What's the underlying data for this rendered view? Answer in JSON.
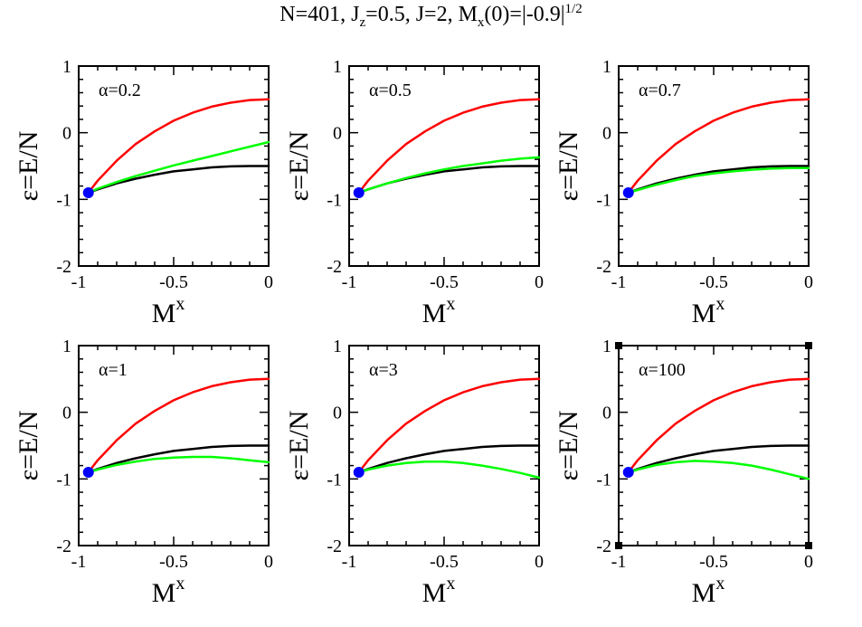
{
  "title": {
    "parts": [
      {
        "text": "N=401, J",
        "style": "normal"
      },
      {
        "text": "z",
        "style": "sub"
      },
      {
        "text": "=0.5, J=2,  M",
        "style": "normal"
      },
      {
        "text": "x",
        "style": "sub"
      },
      {
        "text": "(0)=|-0.9|",
        "style": "normal"
      },
      {
        "text": "1/2",
        "style": "sup"
      }
    ]
  },
  "colors": {
    "red": "#ff0000",
    "black": "#000000",
    "green": "#00ff00",
    "marker": "#0000ff",
    "orange": "#ffa500"
  },
  "chart_data": [
    {
      "type": "line",
      "label": "α=0.2",
      "xlabel": {
        "base": "M",
        "sup": "x"
      },
      "ylabel": "ε=E/N",
      "xlim": [
        -1,
        0
      ],
      "ylim": [
        -2,
        1
      ],
      "xticks": [
        "-1",
        "-0.5",
        "0"
      ],
      "yticks": [
        "-2",
        "-1",
        "0",
        "1"
      ],
      "series": [
        {
          "color": "red",
          "x": [
            -0.949,
            -0.9,
            -0.8,
            -0.7,
            -0.6,
            -0.5,
            -0.4,
            -0.3,
            -0.2,
            -0.1,
            0
          ],
          "y": [
            -0.9,
            -0.72,
            -0.42,
            -0.17,
            0.02,
            0.18,
            0.3,
            0.39,
            0.45,
            0.49,
            0.5
          ]
        },
        {
          "color": "black",
          "x": [
            -0.949,
            -0.9,
            -0.8,
            -0.7,
            -0.6,
            -0.5,
            -0.4,
            -0.3,
            -0.2,
            -0.1,
            0
          ],
          "y": [
            -0.9,
            -0.85,
            -0.76,
            -0.69,
            -0.63,
            -0.58,
            -0.55,
            -0.52,
            -0.505,
            -0.5,
            -0.5
          ]
        },
        {
          "color": "green",
          "x": [
            -0.949,
            -0.9,
            -0.8,
            -0.7,
            -0.6,
            -0.5,
            -0.4,
            -0.3,
            -0.2,
            -0.1,
            0
          ],
          "y": [
            -0.9,
            -0.84,
            -0.74,
            -0.65,
            -0.57,
            -0.49,
            -0.42,
            -0.35,
            -0.28,
            -0.21,
            -0.14
          ]
        }
      ],
      "point": {
        "x": -0.949,
        "y": -0.9
      }
    },
    {
      "type": "line",
      "label": "α=0.5",
      "xlabel": {
        "base": "M",
        "sup": "x"
      },
      "ylabel": "ε=E/N",
      "xlim": [
        -1,
        0
      ],
      "ylim": [
        -2,
        1
      ],
      "xticks": [
        "-1",
        "-0.5",
        "0"
      ],
      "yticks": [
        "-2",
        "-1",
        "0",
        "1"
      ],
      "series": [
        {
          "color": "red",
          "x": [
            -0.949,
            -0.9,
            -0.8,
            -0.7,
            -0.6,
            -0.5,
            -0.4,
            -0.3,
            -0.2,
            -0.1,
            0
          ],
          "y": [
            -0.9,
            -0.72,
            -0.42,
            -0.17,
            0.02,
            0.18,
            0.3,
            0.39,
            0.45,
            0.49,
            0.5
          ]
        },
        {
          "color": "black",
          "x": [
            -0.949,
            -0.9,
            -0.8,
            -0.7,
            -0.6,
            -0.5,
            -0.4,
            -0.3,
            -0.2,
            -0.1,
            0
          ],
          "y": [
            -0.9,
            -0.85,
            -0.76,
            -0.69,
            -0.63,
            -0.58,
            -0.55,
            -0.52,
            -0.505,
            -0.5,
            -0.5
          ]
        },
        {
          "color": "green",
          "x": [
            -0.949,
            -0.9,
            -0.8,
            -0.7,
            -0.6,
            -0.5,
            -0.4,
            -0.3,
            -0.2,
            -0.1,
            0
          ],
          "y": [
            -0.9,
            -0.85,
            -0.76,
            -0.68,
            -0.61,
            -0.55,
            -0.5,
            -0.46,
            -0.42,
            -0.39,
            -0.37
          ]
        }
      ],
      "point": {
        "x": -0.949,
        "y": -0.9
      }
    },
    {
      "type": "line",
      "label": "α=0.7",
      "xlabel": {
        "base": "M",
        "sup": "x"
      },
      "ylabel": "ε=E/N",
      "xlim": [
        -1,
        0
      ],
      "ylim": [
        -2,
        1
      ],
      "xticks": [
        "-1",
        "-0.5",
        "0"
      ],
      "yticks": [
        "-2",
        "-1",
        "0",
        "1"
      ],
      "series": [
        {
          "color": "red",
          "x": [
            -0.949,
            -0.9,
            -0.8,
            -0.7,
            -0.6,
            -0.5,
            -0.4,
            -0.3,
            -0.2,
            -0.1,
            0
          ],
          "y": [
            -0.9,
            -0.72,
            -0.42,
            -0.17,
            0.02,
            0.18,
            0.3,
            0.39,
            0.45,
            0.49,
            0.5
          ]
        },
        {
          "color": "black",
          "x": [
            -0.949,
            -0.9,
            -0.8,
            -0.7,
            -0.6,
            -0.5,
            -0.4,
            -0.3,
            -0.2,
            -0.1,
            0
          ],
          "y": [
            -0.9,
            -0.85,
            -0.76,
            -0.69,
            -0.63,
            -0.58,
            -0.55,
            -0.52,
            -0.505,
            -0.5,
            -0.5
          ]
        },
        {
          "color": "green",
          "x": [
            -0.949,
            -0.9,
            -0.8,
            -0.7,
            -0.6,
            -0.5,
            -0.4,
            -0.3,
            -0.2,
            -0.1,
            0
          ],
          "y": [
            -0.9,
            -0.86,
            -0.78,
            -0.71,
            -0.65,
            -0.61,
            -0.58,
            -0.555,
            -0.54,
            -0.53,
            -0.53
          ]
        }
      ],
      "point": {
        "x": -0.949,
        "y": -0.9
      }
    },
    {
      "type": "line",
      "label": "α=1",
      "xlabel": {
        "base": "M",
        "sup": "x"
      },
      "ylabel": "ε=E/N",
      "xlim": [
        -1,
        0
      ],
      "ylim": [
        -2,
        1
      ],
      "xticks": [
        "-1",
        "-0.5",
        "0"
      ],
      "yticks": [
        "-2",
        "-1",
        "0",
        "1"
      ],
      "series": [
        {
          "color": "red",
          "x": [
            -0.949,
            -0.9,
            -0.8,
            -0.7,
            -0.6,
            -0.5,
            -0.4,
            -0.3,
            -0.2,
            -0.1,
            0
          ],
          "y": [
            -0.9,
            -0.72,
            -0.42,
            -0.17,
            0.02,
            0.18,
            0.3,
            0.39,
            0.45,
            0.49,
            0.5
          ]
        },
        {
          "color": "black",
          "x": [
            -0.949,
            -0.9,
            -0.8,
            -0.7,
            -0.6,
            -0.5,
            -0.4,
            -0.3,
            -0.2,
            -0.1,
            0
          ],
          "y": [
            -0.9,
            -0.85,
            -0.76,
            -0.69,
            -0.63,
            -0.58,
            -0.55,
            -0.52,
            -0.505,
            -0.5,
            -0.5
          ]
        },
        {
          "color": "green",
          "x": [
            -0.949,
            -0.9,
            -0.8,
            -0.7,
            -0.6,
            -0.5,
            -0.4,
            -0.3,
            -0.2,
            -0.1,
            0
          ],
          "y": [
            -0.9,
            -0.86,
            -0.79,
            -0.74,
            -0.7,
            -0.68,
            -0.67,
            -0.67,
            -0.69,
            -0.72,
            -0.75
          ]
        }
      ],
      "point": {
        "x": -0.949,
        "y": -0.9
      }
    },
    {
      "type": "line",
      "label": "α=3",
      "xlabel": {
        "base": "M",
        "sup": "x"
      },
      "ylabel": "ε=E/N",
      "xlim": [
        -1,
        0
      ],
      "ylim": [
        -2,
        1
      ],
      "xticks": [
        "-1",
        "-0.5",
        "0"
      ],
      "yticks": [
        "-2",
        "-1",
        "0",
        "1"
      ],
      "series": [
        {
          "color": "red",
          "x": [
            -0.949,
            -0.9,
            -0.8,
            -0.7,
            -0.6,
            -0.5,
            -0.4,
            -0.3,
            -0.2,
            -0.1,
            0
          ],
          "y": [
            -0.9,
            -0.72,
            -0.42,
            -0.17,
            0.02,
            0.18,
            0.3,
            0.39,
            0.45,
            0.49,
            0.5
          ]
        },
        {
          "color": "black",
          "x": [
            -0.949,
            -0.9,
            -0.8,
            -0.7,
            -0.6,
            -0.5,
            -0.4,
            -0.3,
            -0.2,
            -0.1,
            0
          ],
          "y": [
            -0.9,
            -0.85,
            -0.76,
            -0.69,
            -0.63,
            -0.58,
            -0.55,
            -0.52,
            -0.505,
            -0.5,
            -0.5
          ]
        },
        {
          "color": "green",
          "x": [
            -0.949,
            -0.9,
            -0.8,
            -0.7,
            -0.6,
            -0.5,
            -0.4,
            -0.3,
            -0.2,
            -0.1,
            0
          ],
          "y": [
            -0.9,
            -0.86,
            -0.8,
            -0.76,
            -0.74,
            -0.74,
            -0.76,
            -0.8,
            -0.85,
            -0.91,
            -0.98
          ]
        }
      ],
      "point": {
        "x": -0.949,
        "y": -0.9
      }
    },
    {
      "type": "line",
      "label": "α=100",
      "xlabel": {
        "base": "M",
        "sup": "x"
      },
      "ylabel": "ε=E/N",
      "xlim": [
        -1,
        0
      ],
      "ylim": [
        -2,
        1
      ],
      "xticks": [
        "-1",
        "-0.5",
        "0"
      ],
      "yticks": [
        "-2",
        "-1",
        "0",
        "1"
      ],
      "selected": true,
      "series": [
        {
          "color": "red",
          "x": [
            -0.949,
            -0.9,
            -0.8,
            -0.7,
            -0.6,
            -0.5,
            -0.4,
            -0.3,
            -0.2,
            -0.1,
            0
          ],
          "y": [
            -0.9,
            -0.72,
            -0.42,
            -0.17,
            0.02,
            0.18,
            0.3,
            0.39,
            0.45,
            0.49,
            0.5
          ]
        },
        {
          "color": "black",
          "x": [
            -0.949,
            -0.9,
            -0.8,
            -0.7,
            -0.6,
            -0.5,
            -0.4,
            -0.3,
            -0.2,
            -0.1,
            0
          ],
          "y": [
            -0.9,
            -0.85,
            -0.76,
            -0.69,
            -0.63,
            -0.58,
            -0.55,
            -0.52,
            -0.505,
            -0.5,
            -0.5
          ]
        },
        {
          "color": "green",
          "x": [
            -0.949,
            -0.9,
            -0.8,
            -0.7,
            -0.6,
            -0.5,
            -0.4,
            -0.3,
            -0.2,
            -0.1,
            0
          ],
          "y": [
            -0.9,
            -0.86,
            -0.79,
            -0.75,
            -0.73,
            -0.74,
            -0.76,
            -0.8,
            -0.86,
            -0.93,
            -1.0
          ]
        }
      ],
      "point": {
        "x": -0.949,
        "y": -0.9
      }
    }
  ]
}
